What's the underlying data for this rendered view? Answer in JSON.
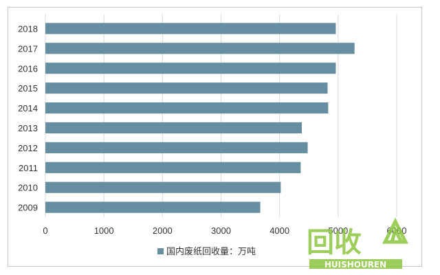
{
  "chart_data": {
    "type": "bar",
    "orientation": "horizontal",
    "categories": [
      "2018",
      "2017",
      "2016",
      "2015",
      "2014",
      "2013",
      "2012",
      "2011",
      "2010",
      "2009"
    ],
    "series": [
      {
        "name": "国内废纸回收量：万吨",
        "values": [
          4960,
          5280,
          4960,
          4820,
          4830,
          4380,
          4480,
          4360,
          4020,
          3670
        ],
        "color": "#658fa0"
      }
    ],
    "xlim": [
      0,
      6000
    ],
    "xticks": [
      "0",
      "1000",
      "2000",
      "3000",
      "4000",
      "5000",
      "6000"
    ],
    "grid": "vertical",
    "legend": "bottom"
  },
  "watermark": {
    "logo_text": "回收",
    "sub_text": "HUISHOUREN",
    "color": "#8cc63f"
  }
}
